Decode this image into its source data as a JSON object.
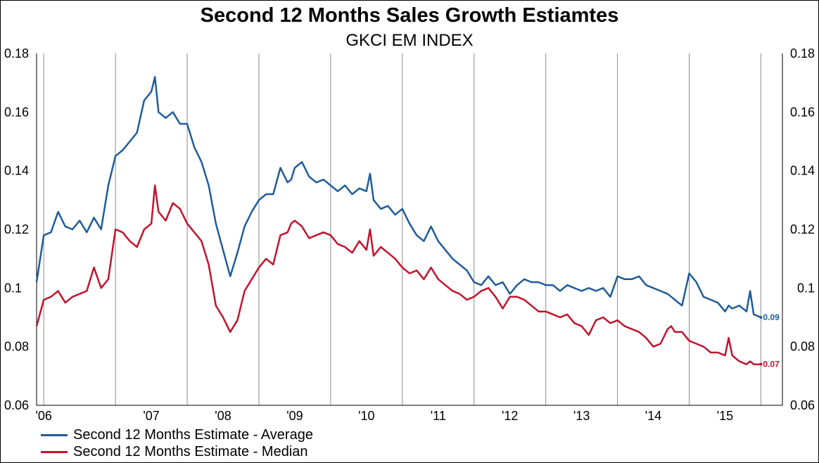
{
  "chart_data": {
    "type": "line",
    "title": "Second 12 Months Sales Growth Estiamtes",
    "subtitle": "GKCI EM INDEX",
    "xlabel": "",
    "ylabel": "",
    "x_tick_labels": [
      "'06",
      "'07",
      "'08",
      "'09",
      "'10",
      "'11",
      "'12",
      "'13",
      "'14",
      "'15"
    ],
    "y_tick_labels": [
      "0.18",
      "0.16",
      "0.14",
      "0.12",
      "0.1",
      "0.08",
      "0.06"
    ],
    "ylim": [
      0.06,
      0.18
    ],
    "xlim": [
      2005.9,
      2016.3
    ],
    "grid": "vertical",
    "legend_position": "bottom-left",
    "series": [
      {
        "name": "Second 12 Months Estimate - Average",
        "color": "#1f5c99",
        "end_label": "0.09",
        "x": [
          2005.9,
          2006.0,
          2006.1,
          2006.2,
          2006.3,
          2006.4,
          2006.5,
          2006.6,
          2006.7,
          2006.8,
          2006.9,
          2007.0,
          2007.1,
          2007.2,
          2007.3,
          2007.4,
          2007.5,
          2007.55,
          2007.6,
          2007.7,
          2007.8,
          2007.9,
          2008.0,
          2008.1,
          2008.2,
          2008.3,
          2008.4,
          2008.5,
          2008.6,
          2008.7,
          2008.8,
          2008.9,
          2009.0,
          2009.1,
          2009.2,
          2009.3,
          2009.4,
          2009.45,
          2009.5,
          2009.6,
          2009.7,
          2009.8,
          2009.9,
          2010.0,
          2010.1,
          2010.2,
          2010.3,
          2010.4,
          2010.5,
          2010.55,
          2010.6,
          2010.7,
          2010.8,
          2010.9,
          2011.0,
          2011.1,
          2011.2,
          2011.3,
          2011.4,
          2011.5,
          2011.6,
          2011.7,
          2011.8,
          2011.9,
          2012.0,
          2012.1,
          2012.2,
          2012.3,
          2012.4,
          2012.5,
          2012.6,
          2012.7,
          2012.8,
          2012.9,
          2013.0,
          2013.1,
          2013.2,
          2013.3,
          2013.4,
          2013.5,
          2013.6,
          2013.7,
          2013.8,
          2013.9,
          2014.0,
          2014.1,
          2014.2,
          2014.3,
          2014.4,
          2014.5,
          2014.6,
          2014.7,
          2014.75,
          2014.8,
          2014.9,
          2015.0,
          2015.1,
          2015.2,
          2015.3,
          2015.4,
          2015.5,
          2015.55,
          2015.6,
          2015.7,
          2015.8,
          2015.85,
          2015.9,
          2016.0
        ],
        "y": [
          0.102,
          0.118,
          0.119,
          0.126,
          0.121,
          0.12,
          0.123,
          0.119,
          0.124,
          0.12,
          0.135,
          0.145,
          0.147,
          0.15,
          0.153,
          0.164,
          0.167,
          0.172,
          0.16,
          0.158,
          0.16,
          0.156,
          0.156,
          0.148,
          0.143,
          0.135,
          0.122,
          0.113,
          0.104,
          0.112,
          0.121,
          0.126,
          0.13,
          0.132,
          0.132,
          0.141,
          0.136,
          0.137,
          0.141,
          0.143,
          0.138,
          0.136,
          0.137,
          0.135,
          0.133,
          0.135,
          0.132,
          0.134,
          0.133,
          0.139,
          0.13,
          0.127,
          0.128,
          0.125,
          0.127,
          0.122,
          0.118,
          0.116,
          0.121,
          0.116,
          0.113,
          0.11,
          0.108,
          0.106,
          0.102,
          0.101,
          0.104,
          0.101,
          0.102,
          0.098,
          0.101,
          0.103,
          0.102,
          0.102,
          0.101,
          0.101,
          0.099,
          0.101,
          0.1,
          0.099,
          0.1,
          0.099,
          0.1,
          0.097,
          0.104,
          0.103,
          0.103,
          0.104,
          0.101,
          0.1,
          0.099,
          0.098,
          0.097,
          0.096,
          0.094,
          0.105,
          0.102,
          0.097,
          0.096,
          0.095,
          0.092,
          0.094,
          0.093,
          0.094,
          0.092,
          0.099,
          0.091,
          0.09
        ]
      },
      {
        "name": "Second 12 Months Estimate - Median",
        "color": "#c0142d",
        "end_label": "0.07",
        "x": [
          2005.9,
          2006.0,
          2006.1,
          2006.2,
          2006.3,
          2006.4,
          2006.5,
          2006.6,
          2006.7,
          2006.8,
          2006.9,
          2007.0,
          2007.1,
          2007.2,
          2007.3,
          2007.4,
          2007.5,
          2007.55,
          2007.6,
          2007.7,
          2007.8,
          2007.9,
          2008.0,
          2008.1,
          2008.2,
          2008.3,
          2008.4,
          2008.5,
          2008.6,
          2008.7,
          2008.8,
          2008.9,
          2009.0,
          2009.1,
          2009.2,
          2009.3,
          2009.4,
          2009.45,
          2009.5,
          2009.6,
          2009.7,
          2009.8,
          2009.9,
          2010.0,
          2010.1,
          2010.2,
          2010.3,
          2010.4,
          2010.5,
          2010.55,
          2010.6,
          2010.7,
          2010.8,
          2010.9,
          2011.0,
          2011.1,
          2011.2,
          2011.3,
          2011.4,
          2011.5,
          2011.6,
          2011.7,
          2011.8,
          2011.9,
          2012.0,
          2012.1,
          2012.2,
          2012.3,
          2012.4,
          2012.5,
          2012.6,
          2012.7,
          2012.8,
          2012.9,
          2013.0,
          2013.1,
          2013.2,
          2013.3,
          2013.4,
          2013.5,
          2013.6,
          2013.7,
          2013.8,
          2013.9,
          2014.0,
          2014.1,
          2014.2,
          2014.3,
          2014.4,
          2014.5,
          2014.6,
          2014.7,
          2014.75,
          2014.8,
          2014.9,
          2015.0,
          2015.1,
          2015.2,
          2015.3,
          2015.4,
          2015.5,
          2015.55,
          2015.6,
          2015.7,
          2015.8,
          2015.85,
          2015.9,
          2016.0
        ],
        "y": [
          0.087,
          0.096,
          0.097,
          0.099,
          0.095,
          0.097,
          0.098,
          0.099,
          0.107,
          0.1,
          0.103,
          0.12,
          0.119,
          0.116,
          0.114,
          0.12,
          0.122,
          0.135,
          0.126,
          0.123,
          0.129,
          0.127,
          0.122,
          0.119,
          0.116,
          0.108,
          0.094,
          0.09,
          0.085,
          0.089,
          0.099,
          0.103,
          0.107,
          0.11,
          0.108,
          0.118,
          0.119,
          0.122,
          0.123,
          0.121,
          0.117,
          0.118,
          0.119,
          0.118,
          0.115,
          0.114,
          0.112,
          0.116,
          0.113,
          0.12,
          0.111,
          0.114,
          0.112,
          0.11,
          0.107,
          0.105,
          0.106,
          0.103,
          0.107,
          0.103,
          0.101,
          0.099,
          0.098,
          0.096,
          0.097,
          0.099,
          0.1,
          0.097,
          0.093,
          0.097,
          0.097,
          0.096,
          0.094,
          0.092,
          0.092,
          0.091,
          0.09,
          0.091,
          0.088,
          0.087,
          0.084,
          0.089,
          0.09,
          0.088,
          0.089,
          0.087,
          0.086,
          0.085,
          0.083,
          0.08,
          0.081,
          0.086,
          0.087,
          0.085,
          0.085,
          0.082,
          0.081,
          0.08,
          0.078,
          0.078,
          0.077,
          0.083,
          0.077,
          0.075,
          0.074,
          0.075,
          0.074,
          0.074
        ]
      }
    ]
  }
}
